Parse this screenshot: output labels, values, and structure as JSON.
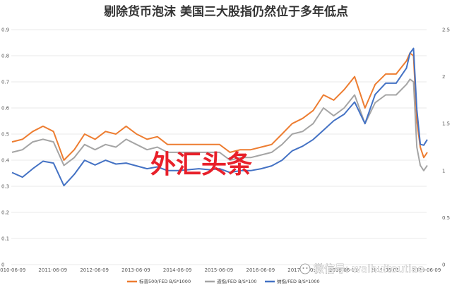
{
  "chart_data": {
    "type": "line",
    "title": "剔除货币泡沫 美国三大股指仍然位于多年低点",
    "x_ticks": [
      "2010-06-09",
      "2011-06-09",
      "2012-06-09",
      "2013-06-09",
      "2014-06-09",
      "2015-06-09",
      "2016-06-09",
      "2017-06-09",
      "2018-06-09",
      "2019-06-09",
      "2020-06-09"
    ],
    "x_range": [
      "2010-06-09",
      "2020-06-09"
    ],
    "y_left_range": [
      0,
      0.9
    ],
    "y_left_ticks": [
      "0.9",
      "0.8",
      "0.7",
      "0.6",
      "0.5",
      "0.4",
      "0.3",
      "0.2",
      "0.1",
      "0"
    ],
    "y_right_range": [
      0,
      2.5
    ],
    "y_right_ticks": [
      "2.5",
      "2",
      "1.5",
      "1",
      "0.5",
      "0"
    ],
    "grid": true,
    "legend_position": "bottom",
    "series": [
      {
        "name": "标普500/FED B/S*1000",
        "color": "#ED7D31",
        "axis": "left",
        "x": [
          "2010-06",
          "2010-09",
          "2010-12",
          "2011-03",
          "2011-06",
          "2011-09",
          "2011-12",
          "2012-03",
          "2012-06",
          "2012-09",
          "2012-12",
          "2013-03",
          "2013-06",
          "2013-09",
          "2013-12",
          "2014-03",
          "2014-06",
          "2014-09",
          "2014-12",
          "2015-03",
          "2015-06",
          "2015-09",
          "2015-12",
          "2016-03",
          "2016-06",
          "2016-09",
          "2016-12",
          "2017-03",
          "2017-06",
          "2017-09",
          "2017-12",
          "2018-03",
          "2018-06",
          "2018-09",
          "2018-12",
          "2019-03",
          "2019-06",
          "2019-09",
          "2019-12",
          "2020-01",
          "2020-02",
          "2020-03",
          "2020-04",
          "2020-05",
          "2020-06"
        ],
        "values": [
          0.47,
          0.48,
          0.51,
          0.53,
          0.51,
          0.4,
          0.44,
          0.5,
          0.48,
          0.51,
          0.5,
          0.53,
          0.5,
          0.48,
          0.49,
          0.46,
          0.46,
          0.46,
          0.46,
          0.46,
          0.46,
          0.43,
          0.44,
          0.44,
          0.45,
          0.46,
          0.5,
          0.54,
          0.56,
          0.59,
          0.65,
          0.63,
          0.67,
          0.72,
          0.6,
          0.69,
          0.73,
          0.73,
          0.78,
          0.81,
          0.8,
          0.55,
          0.45,
          0.41,
          0.43
        ]
      },
      {
        "name": "道指/FED B/S*100",
        "color": "#A5A5A5",
        "axis": "left",
        "x": [
          "2010-06",
          "2010-09",
          "2010-12",
          "2011-03",
          "2011-06",
          "2011-09",
          "2011-12",
          "2012-03",
          "2012-06",
          "2012-09",
          "2012-12",
          "2013-03",
          "2013-06",
          "2013-09",
          "2013-12",
          "2014-03",
          "2014-06",
          "2014-09",
          "2014-12",
          "2015-03",
          "2015-06",
          "2015-09",
          "2015-12",
          "2016-03",
          "2016-06",
          "2016-09",
          "2016-12",
          "2017-03",
          "2017-06",
          "2017-09",
          "2017-12",
          "2018-03",
          "2018-06",
          "2018-09",
          "2018-12",
          "2019-03",
          "2019-06",
          "2019-09",
          "2019-12",
          "2020-01",
          "2020-02",
          "2020-03",
          "2020-04",
          "2020-05",
          "2020-06"
        ],
        "values": [
          0.43,
          0.44,
          0.47,
          0.48,
          0.47,
          0.38,
          0.41,
          0.46,
          0.44,
          0.46,
          0.45,
          0.48,
          0.46,
          0.44,
          0.45,
          0.43,
          0.43,
          0.43,
          0.43,
          0.43,
          0.43,
          0.4,
          0.41,
          0.41,
          0.42,
          0.43,
          0.46,
          0.5,
          0.51,
          0.54,
          0.6,
          0.57,
          0.6,
          0.65,
          0.54,
          0.62,
          0.65,
          0.65,
          0.69,
          0.71,
          0.7,
          0.45,
          0.38,
          0.36,
          0.38
        ]
      },
      {
        "name": "纳指/FED B/S*1000",
        "color": "#4472C4",
        "axis": "right",
        "x": [
          "2010-06",
          "2010-09",
          "2010-12",
          "2011-03",
          "2011-06",
          "2011-09",
          "2011-12",
          "2012-03",
          "2012-06",
          "2012-09",
          "2012-12",
          "2013-03",
          "2013-06",
          "2013-09",
          "2013-12",
          "2014-03",
          "2014-06",
          "2014-09",
          "2014-12",
          "2015-03",
          "2015-06",
          "2015-09",
          "2015-12",
          "2016-03",
          "2016-06",
          "2016-09",
          "2016-12",
          "2017-03",
          "2017-06",
          "2017-09",
          "2017-12",
          "2018-03",
          "2018-06",
          "2018-09",
          "2018-12",
          "2019-03",
          "2019-06",
          "2019-09",
          "2019-12",
          "2020-01",
          "2020-02",
          "2020-03",
          "2020-04",
          "2020-05",
          "2020-06"
        ],
        "values": [
          0.98,
          0.93,
          1.02,
          1.1,
          1.08,
          0.84,
          0.96,
          1.11,
          1.06,
          1.11,
          1.07,
          1.08,
          1.05,
          1.02,
          1.04,
          1.0,
          1.0,
          1.01,
          1.02,
          1.01,
          1.02,
          0.98,
          1.0,
          1.0,
          1.02,
          1.05,
          1.11,
          1.21,
          1.26,
          1.33,
          1.43,
          1.53,
          1.6,
          1.73,
          1.5,
          1.81,
          1.93,
          1.93,
          2.09,
          2.25,
          2.3,
          1.65,
          1.28,
          1.27,
          1.33
        ]
      }
    ]
  },
  "overlay_text": "外汇头条",
  "watermark": "微信号: waihuitoutiao"
}
